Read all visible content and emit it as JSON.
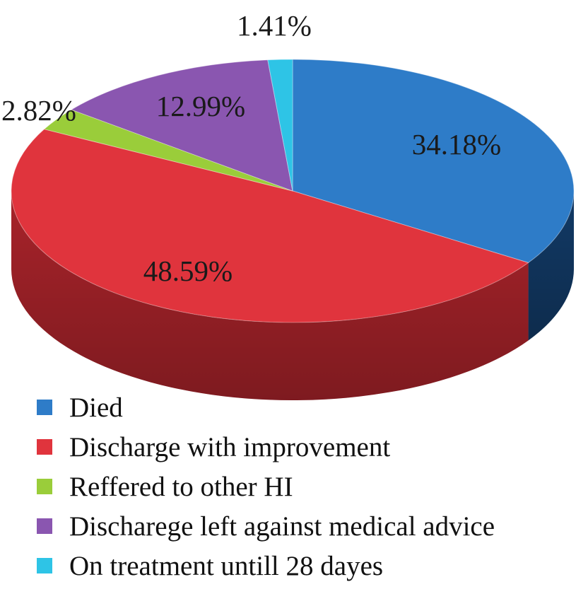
{
  "chart_data": {
    "type": "pie",
    "title": "",
    "three_d": true,
    "legend_position": "bottom",
    "categories": [
      "Died",
      "Discharge with improvement",
      "Reffered to other HI",
      "Discharege left against medical advice",
      "On treatment untill 28 dayes"
    ],
    "values": [
      34.18,
      48.59,
      2.82,
      12.99,
      1.41
    ],
    "data_labels": [
      "34.18%",
      "48.59%",
      "2.82%",
      "12.99%",
      "1.41%"
    ],
    "colors": [
      "#2e7cc8",
      "#e0343d",
      "#9acd3a",
      "#8a56b0",
      "#2ec4e6"
    ],
    "side_colors": [
      "#123a66",
      "#a8232a",
      "#5c8420",
      "#533270",
      "#1a7f96"
    ]
  }
}
